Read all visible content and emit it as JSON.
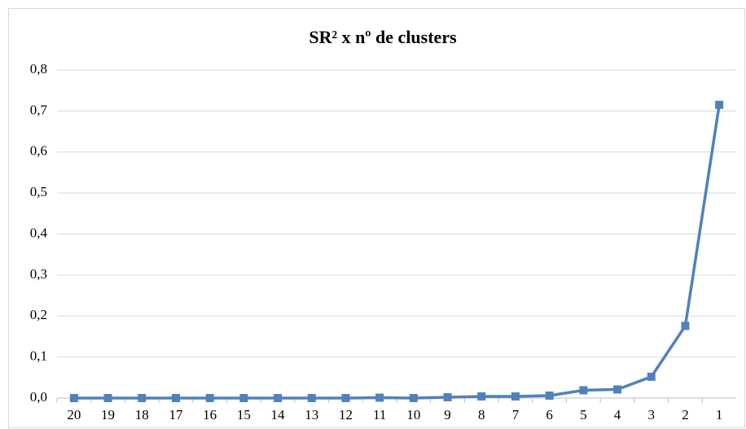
{
  "chart_data": {
    "type": "line",
    "title": "SR² x nº de clusters",
    "categories": [
      "20",
      "19",
      "18",
      "17",
      "16",
      "15",
      "14",
      "13",
      "12",
      "11",
      "10",
      "9",
      "8",
      "7",
      "6",
      "5",
      "4",
      "3",
      "2",
      "1"
    ],
    "series": [
      {
        "name": "SR²",
        "color": "#4f81bd",
        "values": [
          0,
          0,
          0,
          0,
          0,
          0,
          0,
          0,
          0,
          0.001,
          0,
          0.002,
          0.004,
          0.004,
          0.006,
          0.019,
          0.021,
          0.052,
          0.176,
          0.715
        ]
      }
    ],
    "ylim": [
      0,
      0.8
    ],
    "yticks": [
      {
        "value": 0,
        "label": "0,0"
      },
      {
        "value": 0.1,
        "label": "0,1"
      },
      {
        "value": 0.2,
        "label": "0,2"
      },
      {
        "value": 0.3,
        "label": "0,3"
      },
      {
        "value": 0.4,
        "label": "0,4"
      },
      {
        "value": 0.5,
        "label": "0,5"
      },
      {
        "value": 0.6,
        "label": "0,6"
      },
      {
        "value": 0.7,
        "label": "0,7"
      },
      {
        "value": 0.8,
        "label": "0,8"
      }
    ],
    "grid": true
  }
}
